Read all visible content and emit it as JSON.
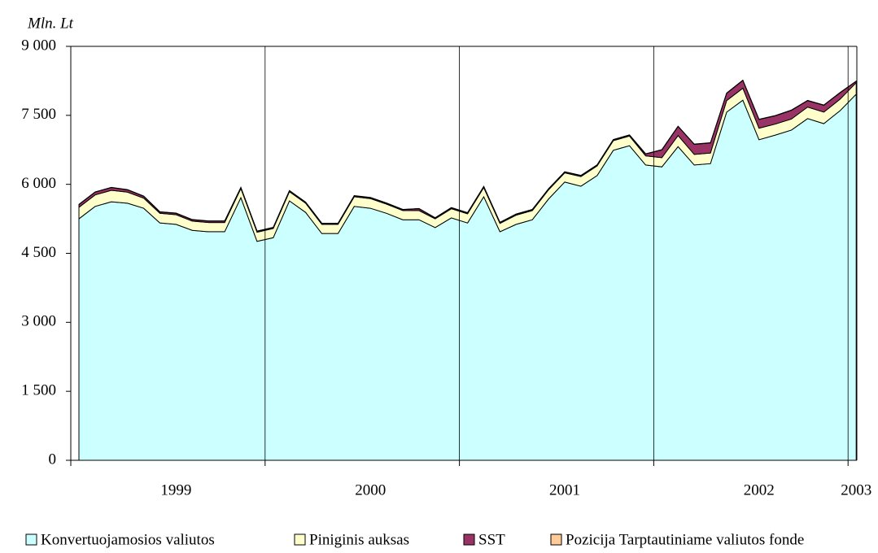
{
  "chart_data": {
    "type": "stacked_area",
    "y_label": "Mln. Lt",
    "categories": [
      null,
      null,
      null,
      null,
      null,
      null,
      "1999",
      null,
      null,
      null,
      null,
      null,
      null,
      null,
      null,
      null,
      null,
      null,
      "2000",
      null,
      null,
      null,
      null,
      null,
      null,
      null,
      null,
      null,
      null,
      null,
      "2001",
      null,
      null,
      null,
      null,
      null,
      null,
      null,
      null,
      null,
      null,
      null,
      "2002",
      null,
      null,
      null,
      null,
      null,
      "2003"
    ],
    "series": [
      {
        "name": "Konvertuojamosios valiutos",
        "color": "#ccffff",
        "values": [
          5250,
          5520,
          5620,
          5590,
          5480,
          5160,
          5130,
          5000,
          4970,
          4970,
          5710,
          4760,
          4840,
          5640,
          5390,
          4930,
          4930,
          5520,
          5480,
          5370,
          5230,
          5230,
          5060,
          5270,
          5160,
          5730,
          4970,
          5130,
          5230,
          5680,
          6050,
          5960,
          6190,
          6740,
          6840,
          6420,
          6380,
          6820,
          6420,
          6450,
          7570,
          7830,
          6970,
          7070,
          7180,
          7430,
          7320,
          7600,
          7960
        ]
      },
      {
        "name": "Piniginis auksas",
        "color": "#ffffcc",
        "values": [
          250,
          250,
          250,
          240,
          220,
          210,
          210,
          200,
          200,
          200,
          200,
          200,
          200,
          200,
          200,
          200,
          200,
          210,
          210,
          200,
          200,
          200,
          190,
          200,
          200,
          200,
          180,
          200,
          200,
          200,
          200,
          210,
          210,
          210,
          210,
          200,
          200,
          240,
          230,
          230,
          250,
          260,
          250,
          240,
          240,
          250,
          250,
          250,
          250
        ]
      },
      {
        "name": "SST",
        "color": "#993366",
        "values": [
          60,
          60,
          60,
          50,
          40,
          30,
          30,
          30,
          30,
          30,
          20,
          20,
          20,
          20,
          20,
          20,
          20,
          20,
          20,
          20,
          20,
          40,
          20,
          20,
          20,
          20,
          20,
          20,
          20,
          20,
          20,
          20,
          20,
          20,
          20,
          40,
          170,
          200,
          220,
          220,
          160,
          170,
          190,
          180,
          190,
          140,
          150,
          140,
          30
        ]
      },
      {
        "name": "Pozicija Tarptautiniame valiutos fonde",
        "color": "#ffcc99",
        "values": [
          5,
          5,
          5,
          5,
          5,
          5,
          5,
          5,
          5,
          5,
          5,
          5,
          5,
          5,
          5,
          5,
          5,
          5,
          5,
          5,
          5,
          5,
          5,
          5,
          5,
          5,
          5,
          5,
          5,
          5,
          5,
          5,
          5,
          5,
          5,
          5,
          5,
          5,
          5,
          5,
          5,
          5,
          5,
          5,
          5,
          5,
          5,
          5,
          5
        ]
      }
    ],
    "ylim": [
      0,
      9000
    ],
    "yticks": [
      0,
      {
        "value": 1500,
        "label": "1 500"
      },
      {
        "value": 3000,
        "label": "3 000"
      },
      {
        "value": 4500,
        "label": "4 500"
      },
      {
        "value": 6000,
        "label": "6 000"
      },
      {
        "value": 7500,
        "label": "7 500"
      },
      {
        "value": 9000,
        "label": "9 000"
      }
    ],
    "legend": "bottom"
  }
}
